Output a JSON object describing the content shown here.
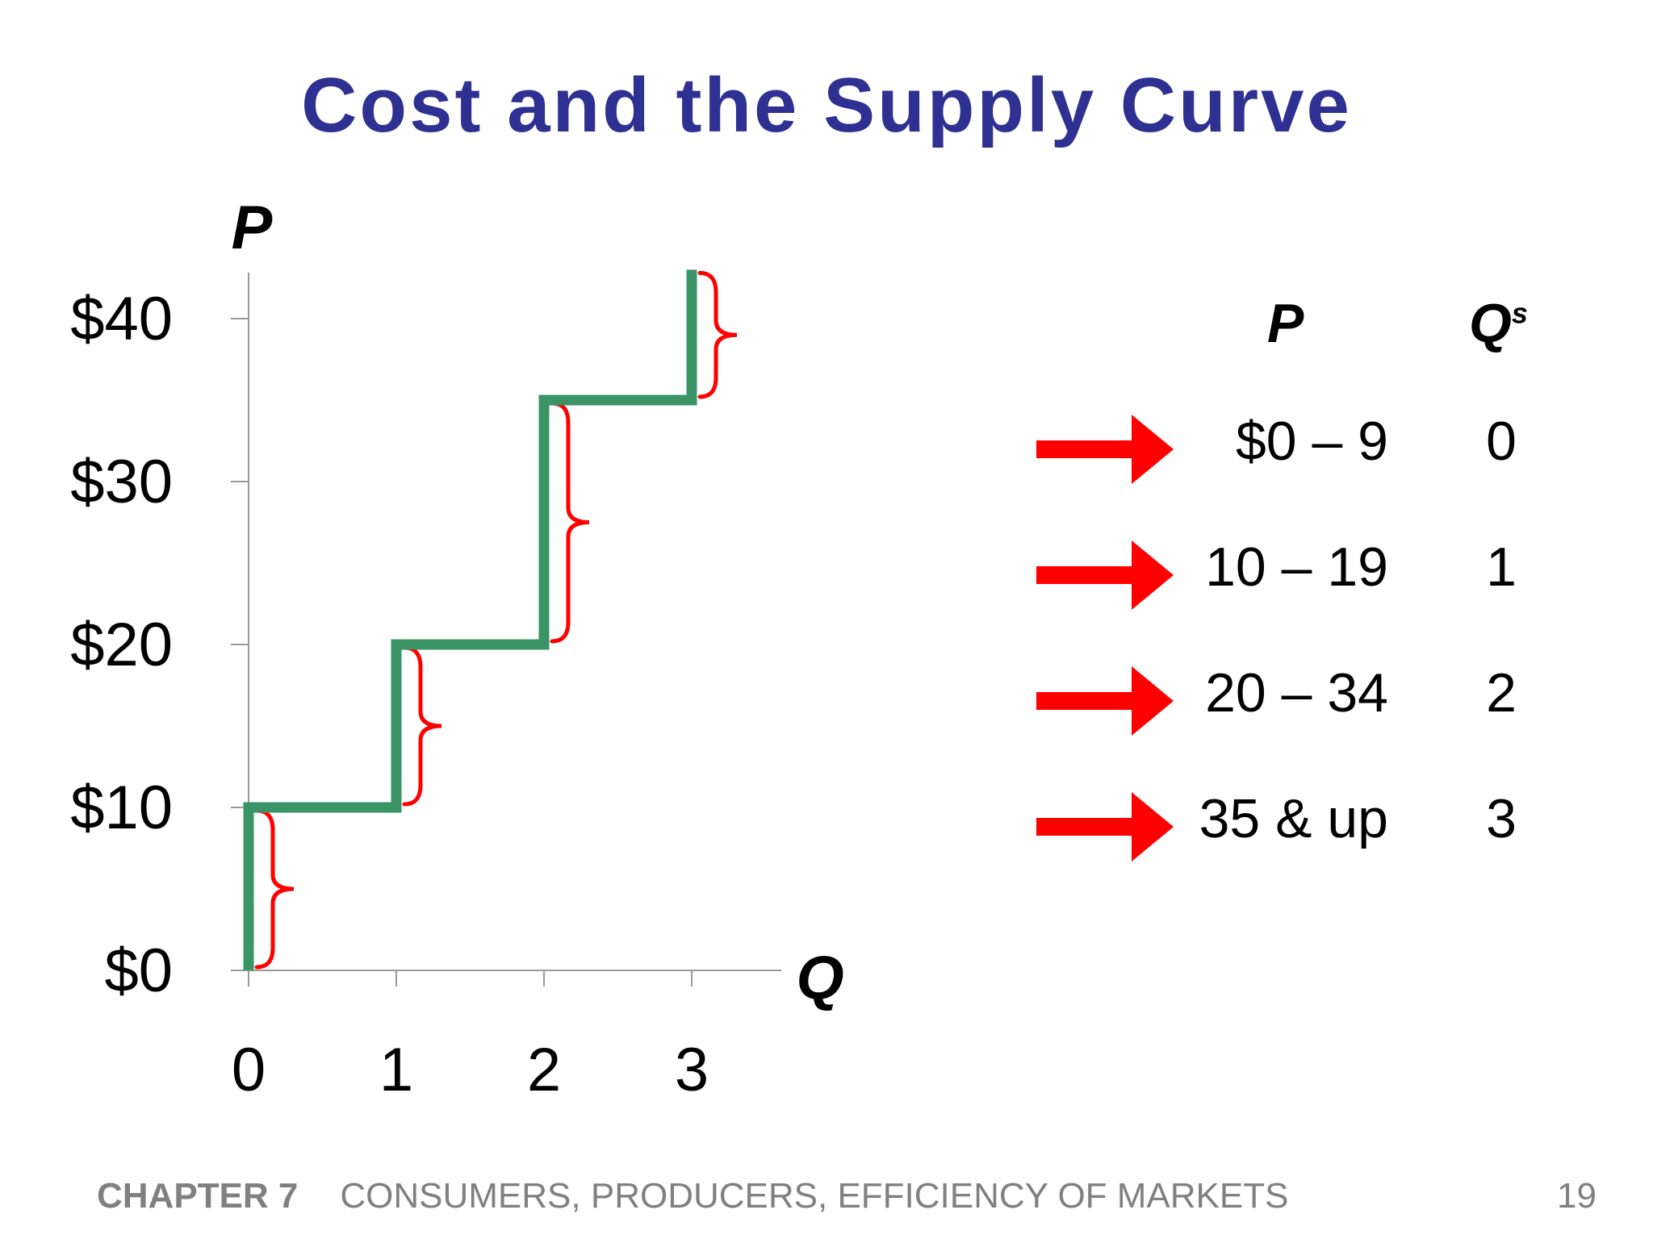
{
  "slide": {
    "title": "Cost and the Supply Curve",
    "footer_chapter": "CHAPTER 7",
    "footer_subject": "CONSUMERS, PRODUCERS, EFFICIENCY OF MARKETS",
    "page_number": "19"
  },
  "chart_data": {
    "type": "line",
    "style": "step",
    "ylabel": "P",
    "xlabel": "Q",
    "x_ticks": [
      "0",
      "1",
      "2",
      "3"
    ],
    "y_ticks": [
      "$0",
      "$10",
      "$20",
      "$30",
      "$40"
    ],
    "xlim": [
      0,
      3.6
    ],
    "ylim": [
      0,
      43
    ],
    "line_color": "#3a9466",
    "points": [
      {
        "x": 0,
        "y": 0
      },
      {
        "x": 0,
        "y": 10
      },
      {
        "x": 1,
        "y": 10
      },
      {
        "x": 1,
        "y": 20
      },
      {
        "x": 2,
        "y": 20
      },
      {
        "x": 2,
        "y": 35
      },
      {
        "x": 3,
        "y": 35
      },
      {
        "x": 3,
        "y": 43
      }
    ],
    "brace_color": "#ff0000",
    "braces": [
      {
        "x": 0,
        "y0": 0,
        "y1": 10
      },
      {
        "x": 1,
        "y0": 10,
        "y1": 20
      },
      {
        "x": 2,
        "y0": 20,
        "y1": 35
      },
      {
        "x": 3,
        "y0": 35,
        "y1": 43
      }
    ]
  },
  "schedule": {
    "header_p": "P",
    "header_q": "Q",
    "header_q_sup": "s",
    "arrow_color": "#ff0000",
    "rows": [
      {
        "p": "$0 – 9",
        "qs": "0"
      },
      {
        "p": "10 – 19",
        "qs": "1"
      },
      {
        "p": "20 – 34",
        "qs": "2"
      },
      {
        "p": "35 & up",
        "qs": "3"
      }
    ]
  }
}
